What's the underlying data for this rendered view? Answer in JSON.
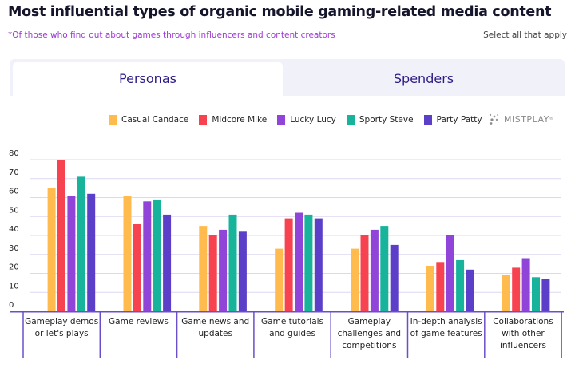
{
  "header": {
    "title": "Most influential types of organic mobile gaming-related media content",
    "subtitle": "*Of those who find out about games through influencers and content creators",
    "note": "Select all that apply"
  },
  "tabs": [
    {
      "label": "Personas",
      "active": true
    },
    {
      "label": "Spenders",
      "active": false
    }
  ],
  "logo": {
    "text": "MISTPLAY",
    "mark": "®"
  },
  "colors": {
    "accent": "#2c1a86",
    "axis": "#6a4fc8",
    "grid": "#dcd8f0"
  },
  "chart_data": {
    "type": "bar",
    "title": "Most influential types of organic mobile gaming-related media content",
    "xlabel": "",
    "ylabel": "",
    "ylim": [
      0,
      80
    ],
    "yticks": [
      0,
      10,
      20,
      30,
      40,
      50,
      60,
      70,
      80
    ],
    "grid": true,
    "legend_position": "top-right",
    "categories": [
      "Gameplay demos or let's plays",
      "Game reviews",
      "Game news and updates",
      "Game tutorials and guides",
      "Gameplay challenges and competitions",
      "In-depth analysis of game features",
      "Collaborations with other influencers"
    ],
    "series": [
      {
        "name": "Casual Candace",
        "color": "#ffbb4d",
        "values": [
          65,
          61,
          45,
          33,
          33,
          24,
          19
        ]
      },
      {
        "name": "Midcore Mike",
        "color": "#f7434f",
        "values": [
          80,
          46,
          40,
          49,
          40,
          26,
          23
        ]
      },
      {
        "name": "Lucky Lucy",
        "color": "#9145d8",
        "values": [
          61,
          58,
          43,
          52,
          43,
          40,
          28
        ]
      },
      {
        "name": "Sporty Steve",
        "color": "#17b39a",
        "values": [
          71,
          59,
          51,
          51,
          45,
          27,
          18
        ]
      },
      {
        "name": "Party Patty",
        "color": "#5c3fc9",
        "values": [
          62,
          51,
          42,
          49,
          35,
          22,
          17
        ]
      }
    ]
  }
}
